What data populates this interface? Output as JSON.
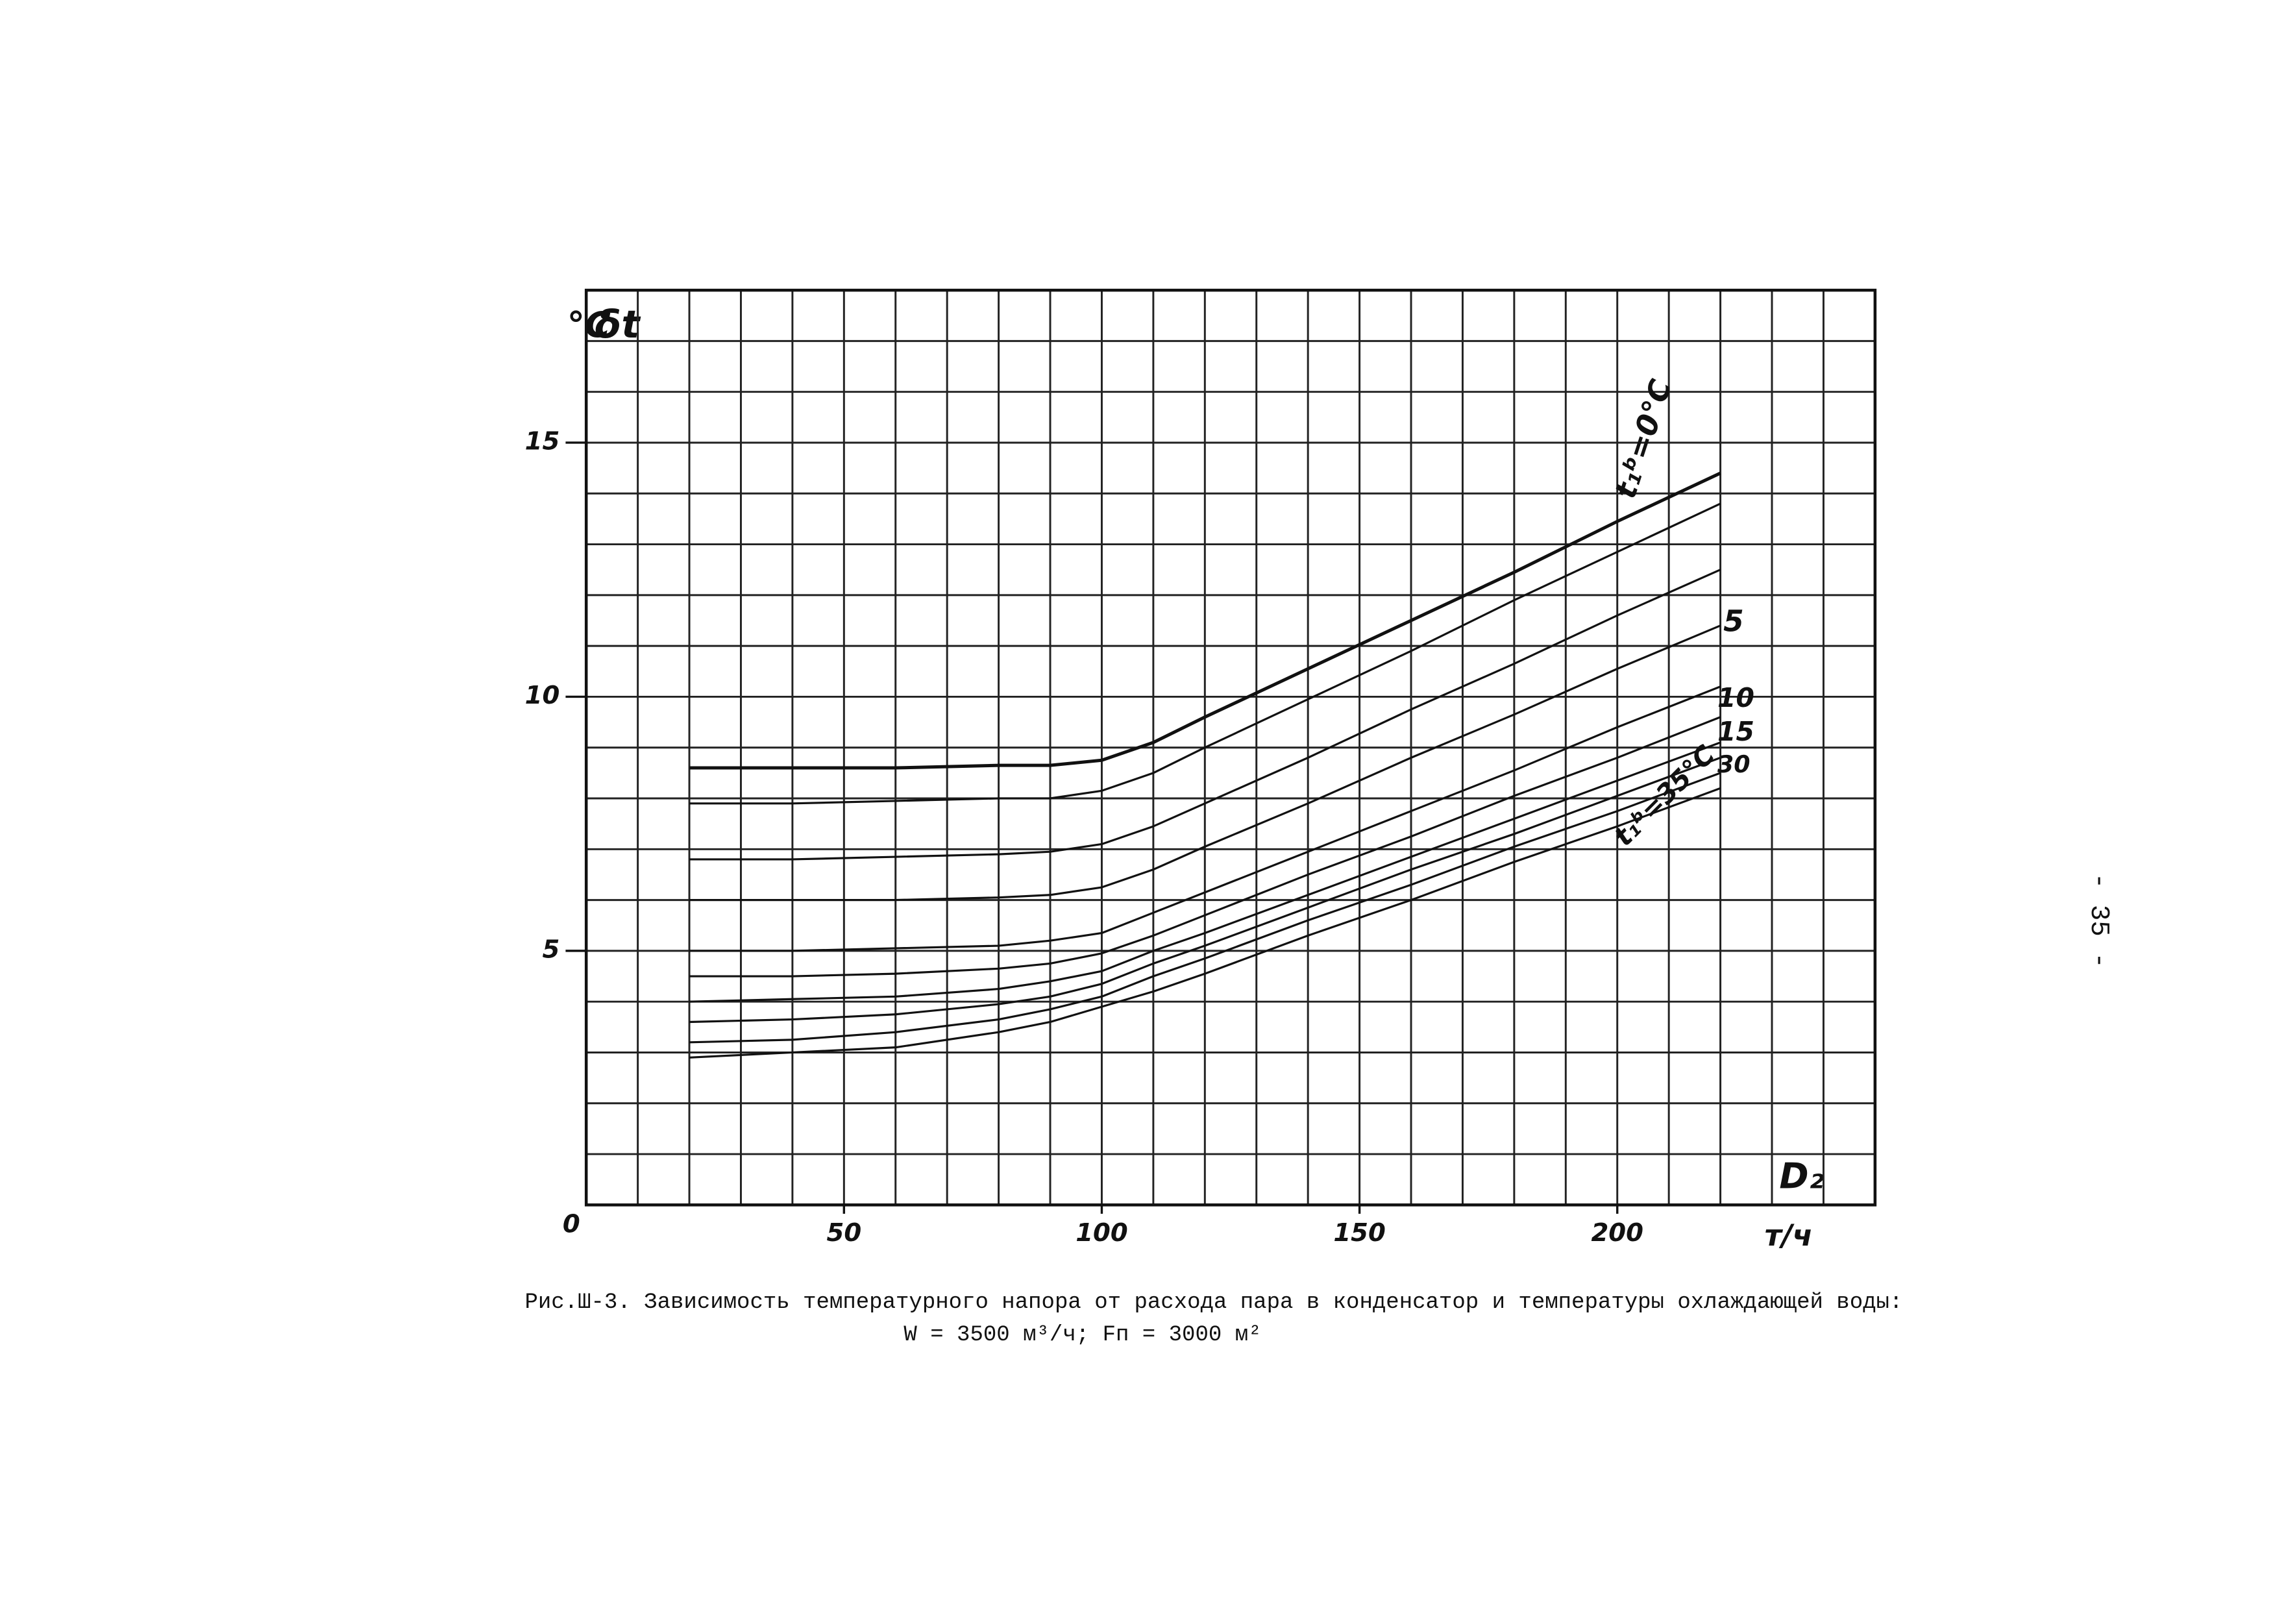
{
  "chart_data": {
    "type": "line",
    "color": "#111111",
    "y_unit": "°C",
    "ylabel": "δt",
    "xlabel": "D₂",
    "x_unit": "т/ч",
    "origin_label": "0",
    "x": [
      20,
      40,
      60,
      80,
      90,
      100,
      110,
      120,
      140,
      160,
      180,
      200,
      220
    ],
    "series": [
      {
        "values": [
          8.6,
          8.6,
          8.6,
          8.65,
          8.65,
          8.75,
          9.1,
          9.6,
          10.55,
          11.5,
          12.45,
          13.45,
          14.4
        ]
      },
      {
        "values": [
          7.9,
          7.9,
          7.95,
          8.0,
          8.0,
          8.15,
          8.5,
          9.0,
          9.95,
          10.9,
          11.9,
          12.85,
          13.8
        ]
      },
      {
        "values": [
          6.8,
          6.8,
          6.85,
          6.9,
          6.95,
          7.1,
          7.45,
          7.9,
          8.8,
          9.75,
          10.65,
          11.6,
          12.5
        ]
      },
      {
        "values": [
          6.0,
          6.0,
          6.0,
          6.05,
          6.1,
          6.25,
          6.6,
          7.05,
          7.9,
          8.8,
          9.65,
          10.55,
          11.4
        ]
      },
      {
        "values": [
          5.0,
          5.0,
          5.05,
          5.1,
          5.2,
          5.35,
          5.75,
          6.15,
          6.95,
          7.75,
          8.55,
          9.4,
          10.2
        ]
      },
      {
        "values": [
          4.5,
          4.5,
          4.55,
          4.65,
          4.75,
          4.95,
          5.3,
          5.7,
          6.5,
          7.25,
          8.05,
          8.8,
          9.6
        ]
      },
      {
        "values": [
          4.0,
          4.05,
          4.1,
          4.25,
          4.4,
          4.6,
          5.0,
          5.35,
          6.1,
          6.85,
          7.6,
          8.35,
          9.1
        ]
      },
      {
        "values": [
          3.6,
          3.65,
          3.75,
          3.95,
          4.1,
          4.35,
          4.75,
          5.1,
          5.85,
          6.6,
          7.3,
          8.05,
          8.8
        ]
      },
      {
        "values": [
          3.2,
          3.25,
          3.4,
          3.65,
          3.85,
          4.1,
          4.5,
          4.85,
          5.6,
          6.3,
          7.05,
          7.75,
          8.5
        ]
      },
      {
        "values": [
          2.9,
          3.0,
          3.1,
          3.4,
          3.6,
          3.9,
          4.2,
          4.55,
          5.3,
          6.0,
          6.75,
          7.45,
          8.2
        ]
      }
    ],
    "curve_labels": [
      "t₁ᵇ=0°C",
      "5",
      "10",
      "15",
      "30",
      "t₁ᵇ=35°C"
    ],
    "xlim": [
      0,
      250
    ],
    "ylim": [
      0,
      18
    ],
    "xticks": [
      50,
      100,
      150,
      200
    ],
    "yticks": [
      5,
      10,
      15
    ],
    "x_grid_step": 10,
    "y_grid_step": 1,
    "grid": true
  },
  "caption": {
    "line1": "Рис.Ш-3. Зависимость температурного напора от расхода пара в конденсатор и температуры охлаждающей воды:",
    "line2": "W = 3500 м³/ч; Fп = 3000 м²"
  },
  "page_number": "- 35 -"
}
